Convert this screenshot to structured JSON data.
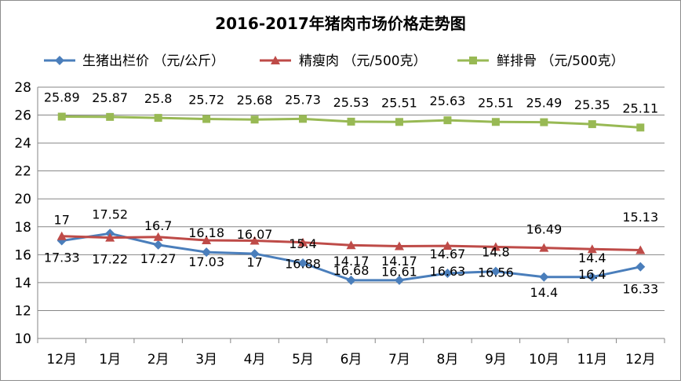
{
  "chart_data": {
    "type": "line",
    "title": "2016-2017年猪肉市场价格走势图",
    "categories": [
      "12月",
      "1月",
      "2月",
      "3月",
      "4月",
      "5月",
      "6月",
      "7月",
      "8月",
      "9月",
      "10月",
      "11月",
      "12月"
    ],
    "ylim": [
      10,
      28
    ],
    "yticks": [
      10,
      12,
      14,
      16,
      18,
      20,
      22,
      24,
      26,
      28
    ],
    "ytick_labels": [
      "10",
      "12",
      "14",
      "16",
      "18",
      "20",
      "22",
      "24",
      "26",
      "28"
    ],
    "xlabel": "",
    "ylabel": "",
    "grid": true,
    "legend_position": "top",
    "series": [
      {
        "name": "生猪出栏价 （元/公斤）",
        "color": "#4a7ebb",
        "marker": "diamond",
        "values": [
          17,
          17.52,
          16.7,
          16.18,
          16.07,
          15.4,
          14.17,
          14.17,
          14.67,
          14.8,
          14.4,
          14.4,
          15.13
        ],
        "labels": [
          "17",
          "17.52",
          "16.7",
          "16.18",
          "16.07",
          "15.4",
          "14.17",
          "14.17",
          "14.67",
          "14.8",
          "14.4",
          "14.4",
          "15.13"
        ]
      },
      {
        "name": "精瘦肉 （元/500克）",
        "color": "#be4b48",
        "marker": "triangle",
        "values": [
          17.33,
          17.22,
          17.27,
          17.03,
          17,
          16.88,
          16.68,
          16.61,
          16.63,
          16.56,
          16.49,
          16.4,
          16.33
        ],
        "labels": [
          "17.33",
          "17.22",
          "17.27",
          "17.03",
          "17",
          "16.88",
          "16.68",
          "16.61",
          "16.63",
          "16.56",
          "16.49",
          "16.4",
          "16.33"
        ]
      },
      {
        "name": "鲜排骨 （元/500克）",
        "color": "#98b954",
        "marker": "square",
        "values": [
          25.89,
          25.87,
          25.8,
          25.72,
          25.68,
          25.73,
          25.53,
          25.51,
          25.63,
          25.51,
          25.49,
          25.35,
          25.11
        ],
        "labels": [
          "25.89",
          "25.87",
          "25.8",
          "25.72",
          "25.68",
          "25.73",
          "25.53",
          "25.51",
          "25.63",
          "25.51",
          "25.49",
          "25.35",
          "25.11"
        ]
      }
    ]
  }
}
